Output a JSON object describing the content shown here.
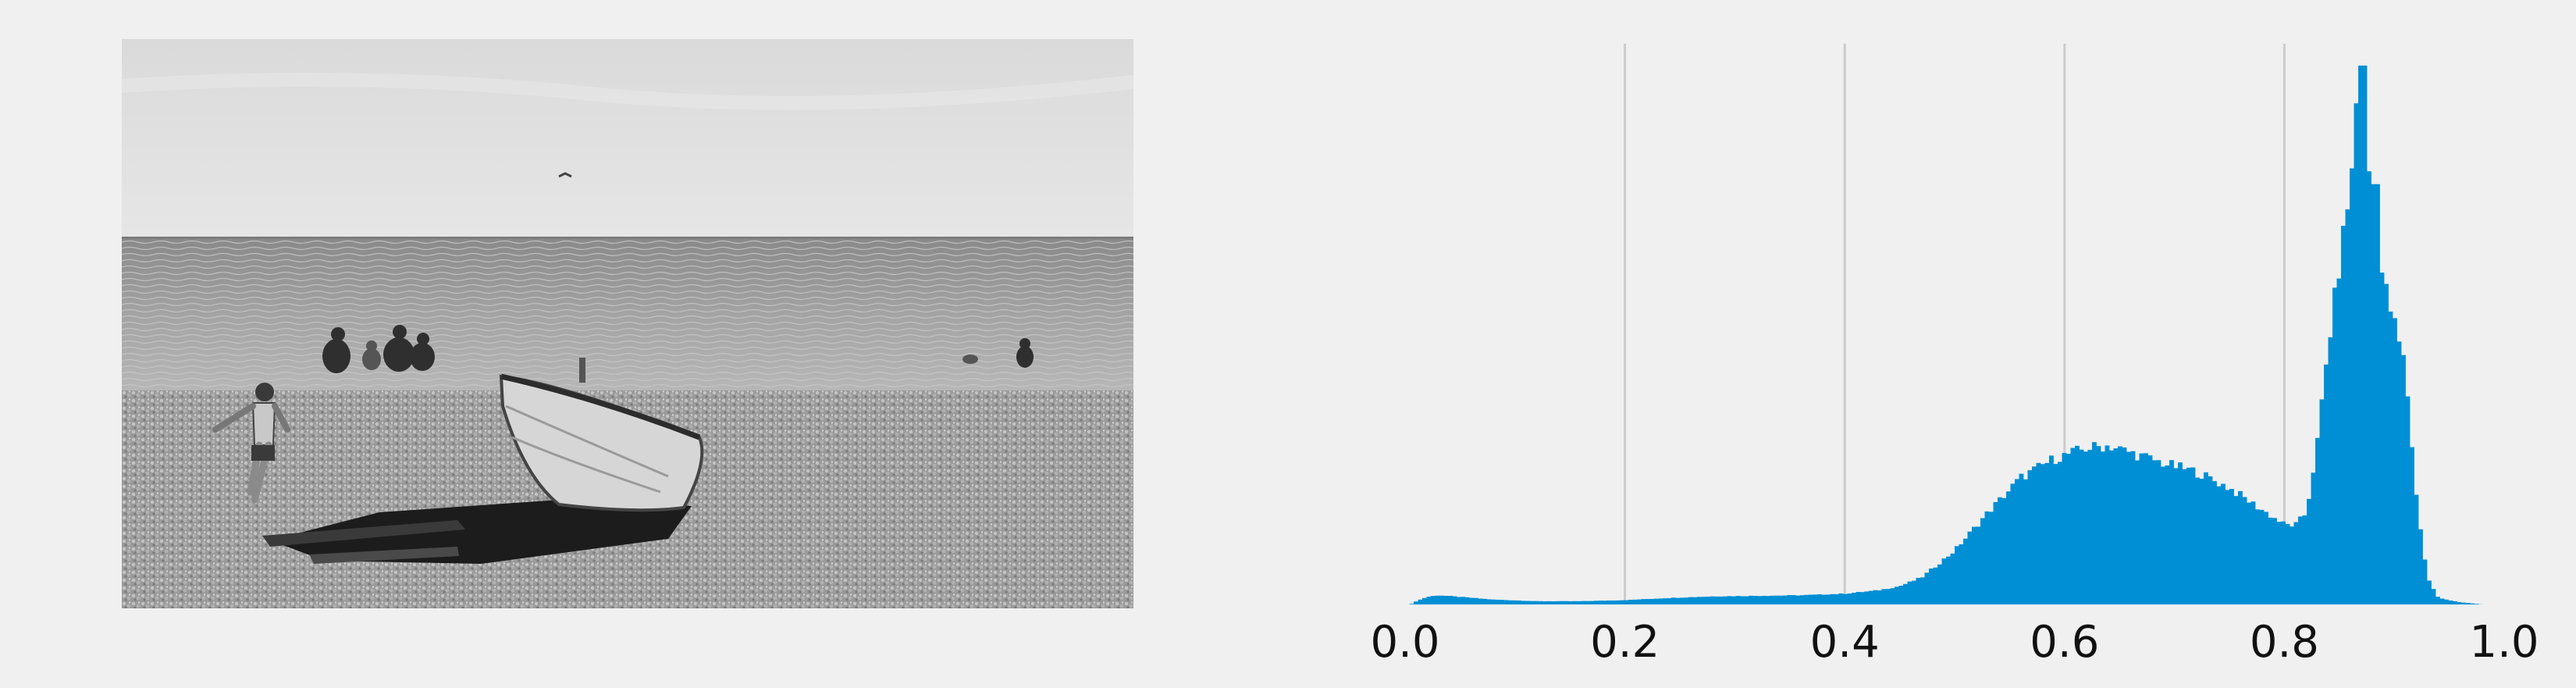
{
  "colors": {
    "background": "#f0f0f0",
    "bar": "#008fd5",
    "grid": "#cbcbcb"
  },
  "photo": {
    "description_icon": "beach-photo-grayscale"
  },
  "chart_data": {
    "type": "bar",
    "title": "",
    "xlabel": "",
    "ylabel": "",
    "xlim": [
      0.0,
      1.0
    ],
    "ylim": [
      0,
      1.0
    ],
    "grid": "vertical-only",
    "xticks": [
      0.0,
      0.2,
      0.4,
      0.6,
      0.8,
      1.0
    ],
    "xtick_labels": [
      "0.0",
      "0.2",
      "0.4",
      "0.6",
      "0.8",
      "1.0"
    ],
    "bins": 256,
    "profile_points": [
      [
        0.0,
        0.0
      ],
      [
        0.005,
        0.0
      ],
      [
        0.01,
        0.006
      ],
      [
        0.02,
        0.014
      ],
      [
        0.03,
        0.017
      ],
      [
        0.05,
        0.014
      ],
      [
        0.08,
        0.009
      ],
      [
        0.12,
        0.006
      ],
      [
        0.16,
        0.006
      ],
      [
        0.2,
        0.008
      ],
      [
        0.24,
        0.012
      ],
      [
        0.28,
        0.015
      ],
      [
        0.32,
        0.016
      ],
      [
        0.36,
        0.017
      ],
      [
        0.4,
        0.02
      ],
      [
        0.43,
        0.026
      ],
      [
        0.45,
        0.034
      ],
      [
        0.47,
        0.05
      ],
      [
        0.5,
        0.1
      ],
      [
        0.53,
        0.17
      ],
      [
        0.56,
        0.235
      ],
      [
        0.59,
        0.27
      ],
      [
        0.62,
        0.29
      ],
      [
        0.64,
        0.295
      ],
      [
        0.66,
        0.282
      ],
      [
        0.69,
        0.262
      ],
      [
        0.72,
        0.246
      ],
      [
        0.75,
        0.216
      ],
      [
        0.78,
        0.175
      ],
      [
        0.8,
        0.148
      ],
      [
        0.81,
        0.147
      ],
      [
        0.82,
        0.17
      ],
      [
        0.83,
        0.3
      ],
      [
        0.84,
        0.48
      ],
      [
        0.85,
        0.63
      ],
      [
        0.86,
        0.78
      ],
      [
        0.865,
        0.86
      ],
      [
        0.87,
        0.97
      ],
      [
        0.875,
        0.86
      ],
      [
        0.88,
        0.72
      ],
      [
        0.89,
        0.6
      ],
      [
        0.9,
        0.52
      ],
      [
        0.91,
        0.44
      ],
      [
        0.92,
        0.2
      ],
      [
        0.93,
        0.05
      ],
      [
        0.94,
        0.012
      ],
      [
        0.96,
        0.004
      ],
      [
        0.98,
        0.0
      ],
      [
        1.0,
        0.0
      ]
    ],
    "spikes": [
      [
        0.871,
        1.0
      ],
      [
        0.868,
        0.93
      ],
      [
        0.874,
        0.88
      ],
      [
        0.862,
        0.64
      ],
      [
        0.857,
        0.7
      ],
      [
        0.883,
        0.78
      ],
      [
        0.898,
        0.36
      ],
      [
        0.906,
        0.41
      ],
      [
        0.912,
        0.33
      ]
    ]
  }
}
